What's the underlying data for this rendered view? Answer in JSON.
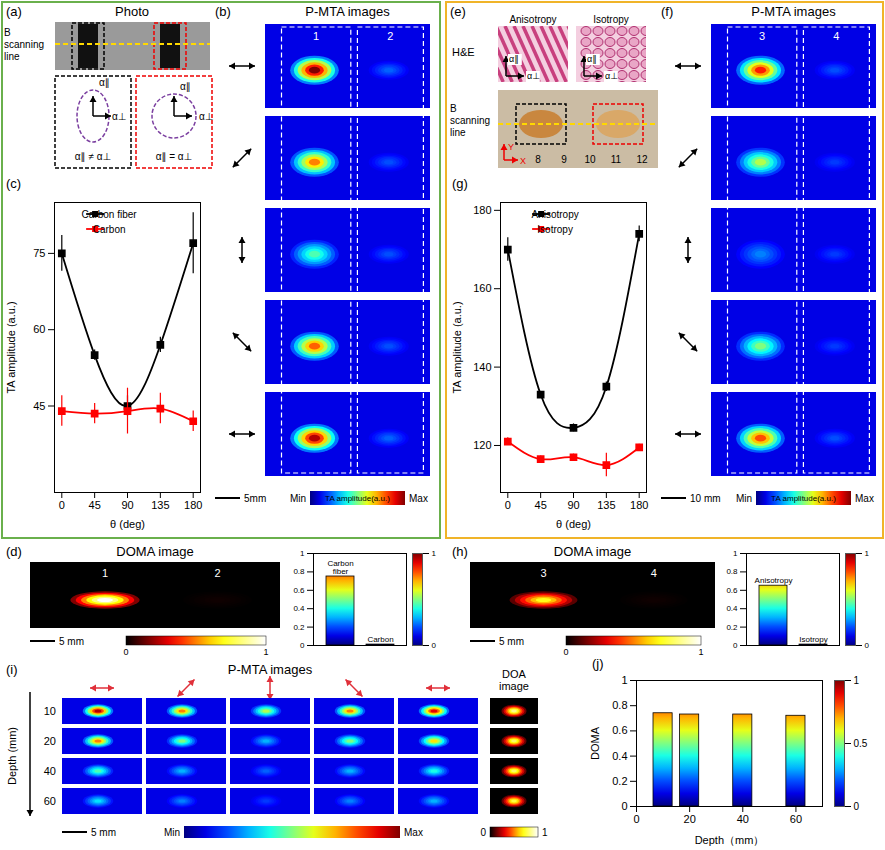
{
  "chart_data": [
    {
      "panel": "(c)",
      "type": "line",
      "x": [
        0,
        45,
        90,
        135,
        180
      ],
      "xlabel": "θ (deg)",
      "ylabel": "TA amplitude (a.u.)",
      "xlim": [
        -10,
        190
      ],
      "xticks": [
        0,
        45,
        90,
        135,
        180
      ],
      "ylim": [
        28,
        85
      ],
      "yticks": [
        45,
        60,
        75
      ],
      "legend": "top",
      "marker": "square",
      "series": [
        {
          "name": "Carbon fiber",
          "color": "#000000",
          "values": [
            75,
            55,
            45,
            57,
            77
          ],
          "errors": [
            3.5,
            1,
            2,
            1.5,
            6
          ]
        },
        {
          "name": "Carbon",
          "color": "#ff0000",
          "values": [
            44,
            43.5,
            44,
            44.5,
            42
          ],
          "errors": [
            3,
            2,
            4.5,
            3,
            2
          ]
        }
      ]
    },
    {
      "panel": "(g)",
      "type": "line",
      "x": [
        0,
        45,
        90,
        135,
        180
      ],
      "xlabel": "θ (deg)",
      "ylabel": "TA amplitude (a.u.)",
      "xlim": [
        -10,
        190
      ],
      "xticks": [
        0,
        45,
        90,
        135,
        180
      ],
      "ylim": [
        108,
        182
      ],
      "yticks": [
        120,
        140,
        160,
        180
      ],
      "legend": "top",
      "marker": "square",
      "series": [
        {
          "name": "Anisotropy",
          "color": "#000000",
          "values": [
            170,
            133,
            124.5,
            135,
            174
          ],
          "errors": [
            3,
            0.8,
            1,
            1.2,
            2
          ]
        },
        {
          "name": "Isotropy",
          "color": "#ff0000",
          "values": [
            121,
            116.5,
            117,
            115,
            119.5
          ],
          "errors": [
            1,
            0.8,
            0.8,
            3,
            0.8
          ]
        }
      ]
    },
    {
      "type": "bar",
      "categories": [
        "Carbon fiber",
        "Carbon"
      ],
      "values": [
        0.75,
        0.01
      ],
      "ylim": [
        0,
        1
      ],
      "yticks": [
        0,
        0.2,
        0.4,
        0.6,
        0.8,
        1
      ],
      "tick_labels": "y",
      "colorbar": {
        "range": [
          0,
          1
        ],
        "ticks": [
          0,
          1
        ]
      }
    },
    {
      "type": "bar",
      "categories": [
        "Anisotropy",
        "Isotropy"
      ],
      "values": [
        0.65,
        0.01
      ],
      "ylim": [
        0,
        1
      ],
      "yticks": [
        0,
        0.2,
        0.4,
        0.6,
        0.8,
        1
      ],
      "tick_labels": "y",
      "colorbar": {
        "range": [
          0,
          1
        ],
        "ticks": [
          0,
          1
        ]
      }
    },
    {
      "panel": "(j)",
      "type": "bar",
      "x": [
        10,
        20,
        40,
        60
      ],
      "values": [
        0.74,
        0.73,
        0.73,
        0.72
      ],
      "xlabel": "Depth（mm）",
      "ylabel": "DOMA",
      "xlim": [
        0,
        70
      ],
      "xticks": [
        0,
        20,
        40,
        60
      ],
      "ylim": [
        0,
        1
      ],
      "yticks": [
        0,
        0.2,
        0.4,
        0.6,
        0.8,
        1
      ],
      "colorbar": {
        "range": [
          0,
          1
        ],
        "ticks": [
          0,
          0.5,
          1
        ]
      }
    }
  ],
  "figure": {
    "a": {
      "letter": "(a)",
      "title": "Photo",
      "scan_label": "B scanning line",
      "alpha_labels": [
        "α∥",
        "α⊥"
      ],
      "relations": [
        "α∥ ≠ α⊥",
        "α∥ = α⊥"
      ]
    },
    "b": {
      "letter": "(b)",
      "title": "P-MTA images",
      "regions": [
        "1",
        "2"
      ],
      "polarization_deg": [
        0,
        45,
        90,
        135,
        180
      ],
      "intensity": [
        [
          1.0,
          0.22
        ],
        [
          0.75,
          0.2
        ],
        [
          0.45,
          0.2
        ],
        [
          0.78,
          0.2
        ],
        [
          0.95,
          0.22
        ]
      ],
      "scale_bar": "5mm",
      "colorbar": {
        "min": "Min",
        "label": "TA amplitude(a.u.)",
        "max": "Max"
      }
    },
    "d": {
      "letter": "(d)",
      "title": "DOMA image",
      "regions": [
        "1",
        "2"
      ],
      "intensity": [
        1.0,
        0.02
      ],
      "scale_bar": "5 mm",
      "colorbar": {
        "range": [
          0,
          1
        ],
        "ticks": [
          0,
          1
        ]
      }
    },
    "e": {
      "letter": "(e)",
      "stain": "H&E",
      "samples": [
        "Anisotropy",
        "Isotropy"
      ],
      "alpha_labels": [
        "α∥",
        "α⊥"
      ],
      "scan_label": "B scanning line",
      "ruler": [
        "8",
        "9",
        "10",
        "11",
        "12"
      ],
      "axes": [
        "X",
        "Y"
      ]
    },
    "f": {
      "letter": "(f)",
      "title": "P-MTA images",
      "regions": [
        "3",
        "4"
      ],
      "polarization_deg": [
        0,
        45,
        90,
        135,
        180
      ],
      "intensity": [
        [
          0.85,
          0.2
        ],
        [
          0.55,
          0.18
        ],
        [
          0.25,
          0.18
        ],
        [
          0.5,
          0.18
        ],
        [
          0.8,
          0.2
        ]
      ],
      "scale_bar": "10 mm",
      "colorbar": {
        "min": "Min",
        "label": "TA amplitude(a.u.)",
        "max": "Max"
      }
    },
    "h": {
      "letter": "(h)",
      "title": "DOMA image",
      "regions": [
        "3",
        "4"
      ],
      "intensity": [
        0.7,
        0.02
      ],
      "scale_bar": "5 mm",
      "colorbar": {
        "range": [
          0,
          1
        ],
        "ticks": [
          0,
          1
        ]
      }
    },
    "i": {
      "letter": "(i)",
      "title": "P-MTA images",
      "doa_title": "DOA image",
      "ylabel": "Depth (mm)",
      "depths": [
        10,
        20,
        40,
        60
      ],
      "polarization_deg": [
        0,
        45,
        90,
        135,
        180
      ],
      "intensity": [
        [
          0.95,
          0.75,
          0.55,
          0.75,
          0.9
        ],
        [
          0.75,
          0.5,
          0.3,
          0.5,
          0.65
        ],
        [
          0.45,
          0.3,
          0.22,
          0.3,
          0.4
        ],
        [
          0.35,
          0.25,
          0.18,
          0.25,
          0.3
        ]
      ],
      "doa_intensity": [
        0.85,
        0.8,
        0.8,
        0.75
      ],
      "scale_bar": "5 mm",
      "colorbar": {
        "min": "Min",
        "max": "Max"
      },
      "doa_colorbar": {
        "range": [
          0,
          1
        ],
        "ticks": [
          0,
          1
        ]
      }
    }
  }
}
